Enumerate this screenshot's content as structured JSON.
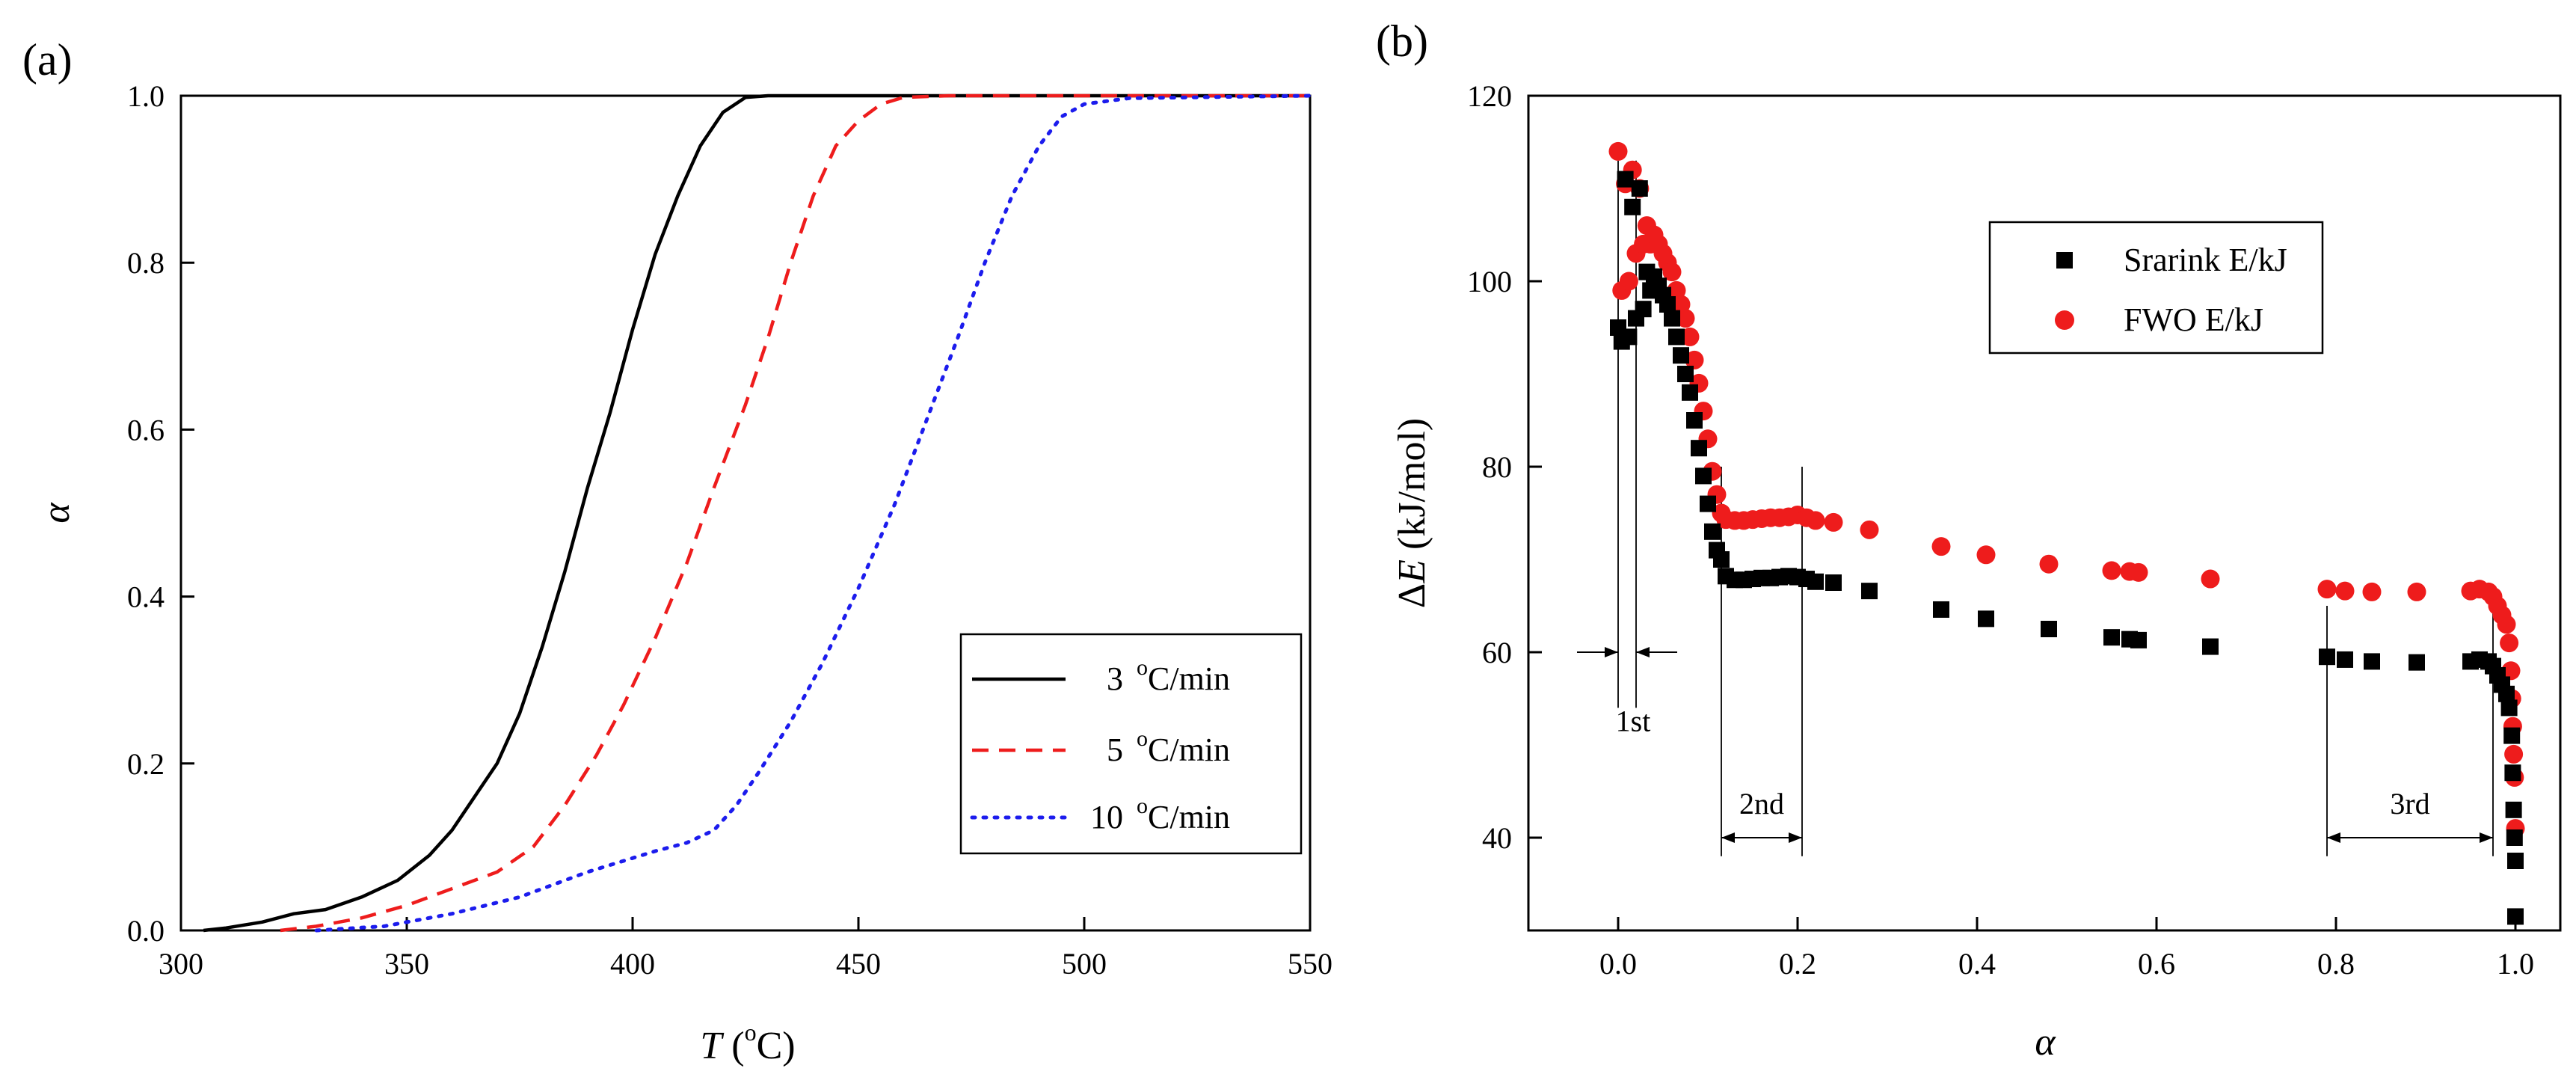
{
  "figure": {
    "panel_a_label": "(a)",
    "panel_b_label": "(b)"
  },
  "chart_data": [
    {
      "type": "line",
      "title": "",
      "xlabel_main": "T",
      "xlabel_open": " (",
      "xlabel_sup": "o",
      "xlabel_close": "C)",
      "ylabel": "α",
      "xlim": [
        300,
        550
      ],
      "ylim": [
        0,
        1.0
      ],
      "xticks": [
        300,
        350,
        400,
        450,
        500,
        550
      ],
      "yticks": [
        0.0,
        0.2,
        0.4,
        0.6,
        0.8,
        1.0
      ],
      "xtick_labels": [
        "300",
        "350",
        "400",
        "450",
        "500",
        "550"
      ],
      "ytick_labels": [
        "0.0",
        "0.2",
        "0.4",
        "0.6",
        "0.8",
        "1.0"
      ],
      "legend_position": "bottom-right",
      "series": [
        {
          "name": "3 °C/min",
          "label_value": "3",
          "label_unit_sup": "o",
          "label_unit": "C/min",
          "color": "#000000",
          "dash": "solid",
          "points": [
            [
              305,
              0
            ],
            [
              310,
              0.003
            ],
            [
              318,
              0.01
            ],
            [
              325,
              0.02
            ],
            [
              332,
              0.025
            ],
            [
              340,
              0.04
            ],
            [
              348,
              0.06
            ],
            [
              355,
              0.09
            ],
            [
              360,
              0.12
            ],
            [
              365,
              0.16
            ],
            [
              370,
              0.2
            ],
            [
              375,
              0.26
            ],
            [
              380,
              0.34
            ],
            [
              385,
              0.43
            ],
            [
              390,
              0.53
            ],
            [
              395,
              0.62
            ],
            [
              400,
              0.72
            ],
            [
              405,
              0.81
            ],
            [
              410,
              0.88
            ],
            [
              415,
              0.94
            ],
            [
              420,
              0.98
            ],
            [
              425,
              0.998
            ],
            [
              430,
              1.0
            ],
            [
              550,
              1.0
            ]
          ]
        },
        {
          "name": "5 °C/min",
          "label_value": "5",
          "label_unit_sup": "o",
          "label_unit": "C/min",
          "color": "#ee1c1c",
          "dash": "dashed",
          "points": [
            [
              322,
              0
            ],
            [
              330,
              0.005
            ],
            [
              340,
              0.015
            ],
            [
              350,
              0.03
            ],
            [
              360,
              0.05
            ],
            [
              370,
              0.07
            ],
            [
              378,
              0.1
            ],
            [
              385,
              0.15
            ],
            [
              392,
              0.21
            ],
            [
              398,
              0.27
            ],
            [
              405,
              0.35
            ],
            [
              412,
              0.44
            ],
            [
              418,
              0.53
            ],
            [
              425,
              0.63
            ],
            [
              430,
              0.71
            ],
            [
              435,
              0.8
            ],
            [
              440,
              0.88
            ],
            [
              445,
              0.94
            ],
            [
              450,
              0.97
            ],
            [
              455,
              0.99
            ],
            [
              460,
              0.998
            ],
            [
              470,
              1.0
            ],
            [
              550,
              1.0
            ]
          ]
        },
        {
          "name": "10 °C/min",
          "label_value": "10",
          "label_unit_sup": "o",
          "label_unit": "C/min",
          "color": "#1c1ced",
          "dash": "dotted",
          "points": [
            [
              330,
              0
            ],
            [
              345,
              0.005
            ],
            [
              360,
              0.02
            ],
            [
              375,
              0.04
            ],
            [
              390,
              0.07
            ],
            [
              405,
              0.095
            ],
            [
              412,
              0.105
            ],
            [
              418,
              0.12
            ],
            [
              423,
              0.15
            ],
            [
              428,
              0.19
            ],
            [
              435,
              0.25
            ],
            [
              442,
              0.32
            ],
            [
              450,
              0.41
            ],
            [
              458,
              0.51
            ],
            [
              465,
              0.61
            ],
            [
              472,
              0.71
            ],
            [
              478,
              0.8
            ],
            [
              484,
              0.88
            ],
            [
              490,
              0.94
            ],
            [
              495,
              0.975
            ],
            [
              500,
              0.99
            ],
            [
              510,
              0.997
            ],
            [
              550,
              1.0
            ]
          ]
        }
      ]
    },
    {
      "type": "scatter",
      "title": "",
      "xlabel": "α",
      "ylabel_delta": "Δ",
      "ylabel_var": "E",
      "ylabel_unit": " (kJ/mol)",
      "xlim": [
        -0.1,
        1.05
      ],
      "ylim": [
        30,
        120
      ],
      "xticks": [
        0.0,
        0.2,
        0.4,
        0.6,
        0.8,
        1.0
      ],
      "yticks": [
        40,
        60,
        80,
        100,
        120
      ],
      "xtick_labels": [
        "0.0",
        "0.2",
        "0.4",
        "0.6",
        "0.8",
        "1.0"
      ],
      "ytick_labels": [
        "40",
        "60",
        "80",
        "100",
        "120"
      ],
      "legend_position": "top-right",
      "series": [
        {
          "name": "Srarink E/kJ",
          "marker": "square",
          "color": "#000000",
          "points": [
            [
              0.0,
              95
            ],
            [
              0.004,
              93.5
            ],
            [
              0.008,
              111
            ],
            [
              0.012,
              94
            ],
            [
              0.016,
              108
            ],
            [
              0.02,
              96
            ],
            [
              0.024,
              110
            ],
            [
              0.028,
              97
            ],
            [
              0.032,
              101
            ],
            [
              0.036,
              99
            ],
            [
              0.04,
              100.5
            ],
            [
              0.045,
              99.5
            ],
            [
              0.05,
              98.5
            ],
            [
              0.055,
              97.5
            ],
            [
              0.06,
              96
            ],
            [
              0.065,
              94
            ],
            [
              0.07,
              92
            ],
            [
              0.075,
              90
            ],
            [
              0.08,
              88
            ],
            [
              0.085,
              85
            ],
            [
              0.09,
              82
            ],
            [
              0.095,
              79
            ],
            [
              0.1,
              76
            ],
            [
              0.105,
              73
            ],
            [
              0.11,
              71
            ],
            [
              0.115,
              70
            ],
            [
              0.12,
              68.2
            ],
            [
              0.13,
              67.8
            ],
            [
              0.14,
              67.8
            ],
            [
              0.15,
              67.9
            ],
            [
              0.16,
              68
            ],
            [
              0.17,
              68
            ],
            [
              0.18,
              68.1
            ],
            [
              0.19,
              68.2
            ],
            [
              0.2,
              68.1
            ],
            [
              0.21,
              67.9
            ],
            [
              0.22,
              67.6
            ],
            [
              0.24,
              67.5
            ],
            [
              0.28,
              66.6
            ],
            [
              0.36,
              64.6
            ],
            [
              0.41,
              63.6
            ],
            [
              0.48,
              62.5
            ],
            [
              0.55,
              61.6
            ],
            [
              0.57,
              61.4
            ],
            [
              0.58,
              61.3
            ],
            [
              0.66,
              60.6
            ],
            [
              0.79,
              59.5
            ],
            [
              0.81,
              59.2
            ],
            [
              0.84,
              59
            ],
            [
              0.89,
              58.9
            ],
            [
              0.95,
              59
            ],
            [
              0.96,
              59.2
            ],
            [
              0.97,
              59
            ],
            [
              0.975,
              58.5
            ],
            [
              0.98,
              57.5
            ],
            [
              0.985,
              56.5
            ],
            [
              0.99,
              55.5
            ],
            [
              0.993,
              54
            ],
            [
              0.996,
              51
            ],
            [
              0.997,
              47
            ],
            [
              0.998,
              43
            ],
            [
              0.999,
              40
            ],
            [
              1.0,
              37.5
            ],
            [
              1.0,
              31.5
            ]
          ]
        },
        {
          "name": "FWO E/kJ",
          "marker": "circle",
          "color": "#ee1c1c",
          "points": [
            [
              0.0,
              114
            ],
            [
              0.004,
              99
            ],
            [
              0.008,
              110.5
            ],
            [
              0.012,
              100
            ],
            [
              0.016,
              112
            ],
            [
              0.02,
              103
            ],
            [
              0.024,
              110
            ],
            [
              0.028,
              104
            ],
            [
              0.032,
              106
            ],
            [
              0.036,
              104
            ],
            [
              0.04,
              105
            ],
            [
              0.045,
              104
            ],
            [
              0.05,
              103
            ],
            [
              0.055,
              102
            ],
            [
              0.06,
              101
            ],
            [
              0.065,
              99
            ],
            [
              0.07,
              97.5
            ],
            [
              0.075,
              96
            ],
            [
              0.08,
              94
            ],
            [
              0.085,
              91.5
            ],
            [
              0.09,
              89
            ],
            [
              0.095,
              86
            ],
            [
              0.1,
              83
            ],
            [
              0.105,
              79.5
            ],
            [
              0.11,
              77
            ],
            [
              0.115,
              75
            ],
            [
              0.12,
              74.3
            ],
            [
              0.13,
              74.2
            ],
            [
              0.14,
              74.2
            ],
            [
              0.15,
              74.3
            ],
            [
              0.16,
              74.4
            ],
            [
              0.17,
              74.5
            ],
            [
              0.18,
              74.5
            ],
            [
              0.19,
              74.6
            ],
            [
              0.2,
              74.8
            ],
            [
              0.21,
              74.5
            ],
            [
              0.22,
              74.2
            ],
            [
              0.24,
              74
            ],
            [
              0.28,
              73.2
            ],
            [
              0.36,
              71.4
            ],
            [
              0.41,
              70.5
            ],
            [
              0.48,
              69.5
            ],
            [
              0.55,
              68.8
            ],
            [
              0.57,
              68.7
            ],
            [
              0.58,
              68.6
            ],
            [
              0.66,
              67.9
            ],
            [
              0.79,
              66.8
            ],
            [
              0.81,
              66.6
            ],
            [
              0.84,
              66.5
            ],
            [
              0.89,
              66.5
            ],
            [
              0.95,
              66.6
            ],
            [
              0.96,
              66.8
            ],
            [
              0.97,
              66.5
            ],
            [
              0.975,
              66
            ],
            [
              0.98,
              65
            ],
            [
              0.985,
              64
            ],
            [
              0.99,
              63
            ],
            [
              0.993,
              61
            ],
            [
              0.995,
              58
            ],
            [
              0.996,
              55
            ],
            [
              0.997,
              52
            ],
            [
              0.998,
              49
            ],
            [
              0.999,
              46.5
            ],
            [
              1.0,
              41
            ]
          ]
        }
      ],
      "regions": [
        {
          "label": "1st",
          "x_start": 0.0,
          "x_end": 0.02
        },
        {
          "label": "2nd",
          "x_start": 0.115,
          "x_end": 0.205
        },
        {
          "label": "3rd",
          "x_start": 0.79,
          "x_end": 0.975
        }
      ]
    }
  ]
}
